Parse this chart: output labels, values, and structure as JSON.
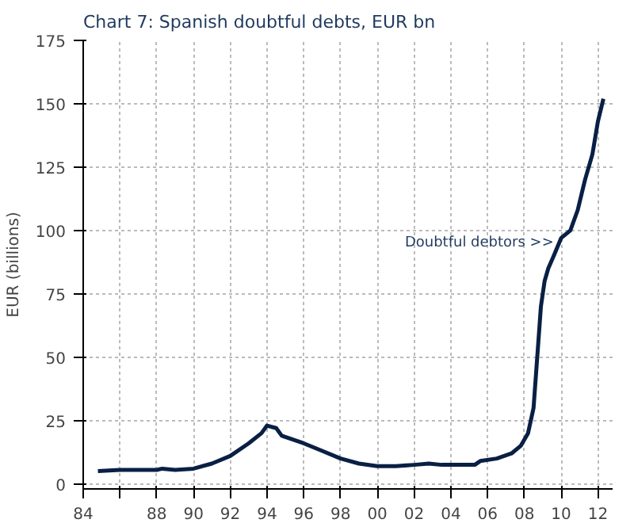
{
  "chart_data": {
    "type": "line",
    "title": "Chart 7: Spanish doubtful debts, EUR bn",
    "ylabel": "EUR (billions)",
    "x": [
      1984.8,
      1986,
      1988,
      1988.3,
      1989,
      1990,
      1991,
      1992,
      1993,
      1993.7,
      1994,
      1994.5,
      1994.8,
      1996,
      1997,
      1998,
      1999,
      2000,
      2001,
      2002,
      2002.8,
      2003.5,
      2004.5,
      2005.3,
      2005.6,
      2006.5,
      2007.3,
      2007.8,
      2008.2,
      2008.5,
      2008.7,
      2008.9,
      2009.1,
      2009.3,
      2009.6,
      2010,
      2010.5,
      2010.9,
      2011.3,
      2011.7,
      2012,
      2012.3
    ],
    "series": [
      {
        "color": "#0a1f44",
        "values": [
          5,
          5.5,
          5.5,
          6,
          5.5,
          6,
          8,
          11,
          16,
          20,
          23,
          22,
          19,
          16,
          13,
          10,
          8,
          7,
          7,
          7.5,
          8,
          7.5,
          7.5,
          7.5,
          9,
          10,
          12,
          15,
          20,
          30,
          50,
          70,
          80,
          85,
          90,
          97,
          100,
          108,
          120,
          130,
          143,
          152
        ]
      }
    ],
    "xlim": [
      1984,
      2012.8
    ],
    "xticks": [
      {
        "value": 1984,
        "label": "84"
      },
      {
        "value": 1986,
        "label": null
      },
      {
        "value": 1988,
        "label": "88"
      },
      {
        "value": 1990,
        "label": "90"
      },
      {
        "value": 1992,
        "label": "92"
      },
      {
        "value": 1994,
        "label": "94"
      },
      {
        "value": 1996,
        "label": "96"
      },
      {
        "value": 1998,
        "label": "98"
      },
      {
        "value": 2000,
        "label": "00"
      },
      {
        "value": 2002,
        "label": "02"
      },
      {
        "value": 2004,
        "label": "04"
      },
      {
        "value": 2006,
        "label": "06"
      },
      {
        "value": 2008,
        "label": "08"
      },
      {
        "value": 2010,
        "label": "10"
      },
      {
        "value": 2012,
        "label": "12"
      }
    ],
    "ylim": [
      -2,
      175
    ],
    "yticks": [
      0,
      25,
      50,
      75,
      100,
      125,
      150,
      175
    ],
    "annotations": [
      {
        "text": "Doubtful debtors >>",
        "x": 2009.6,
        "y": 95
      }
    ],
    "grid": true,
    "marker": "none",
    "line_style": "solid"
  }
}
